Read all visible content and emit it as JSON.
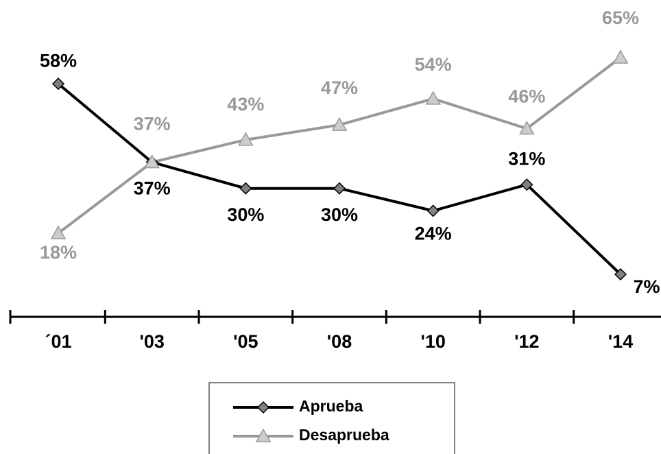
{
  "chart_data": {
    "type": "line",
    "categories": [
      "´01",
      "'03",
      "'05",
      "'08",
      "'10",
      "'12",
      "'14"
    ],
    "series": [
      {
        "name": "Aprueba",
        "color": "#000000",
        "marker": "diamond",
        "values": [
          58,
          37,
          30,
          30,
          24,
          31,
          7
        ],
        "value_labels": [
          "58%",
          "37%",
          "30%",
          "30%",
          "24%",
          "31%",
          "7%"
        ]
      },
      {
        "name": "Desaprueba",
        "color": "#999999",
        "marker": "triangle",
        "values": [
          18,
          37,
          43,
          47,
          54,
          46,
          65
        ],
        "value_labels": [
          "18%",
          "37%",
          "43%",
          "47%",
          "54%",
          "46%",
          "65%"
        ]
      }
    ],
    "legend": "bottom"
  }
}
